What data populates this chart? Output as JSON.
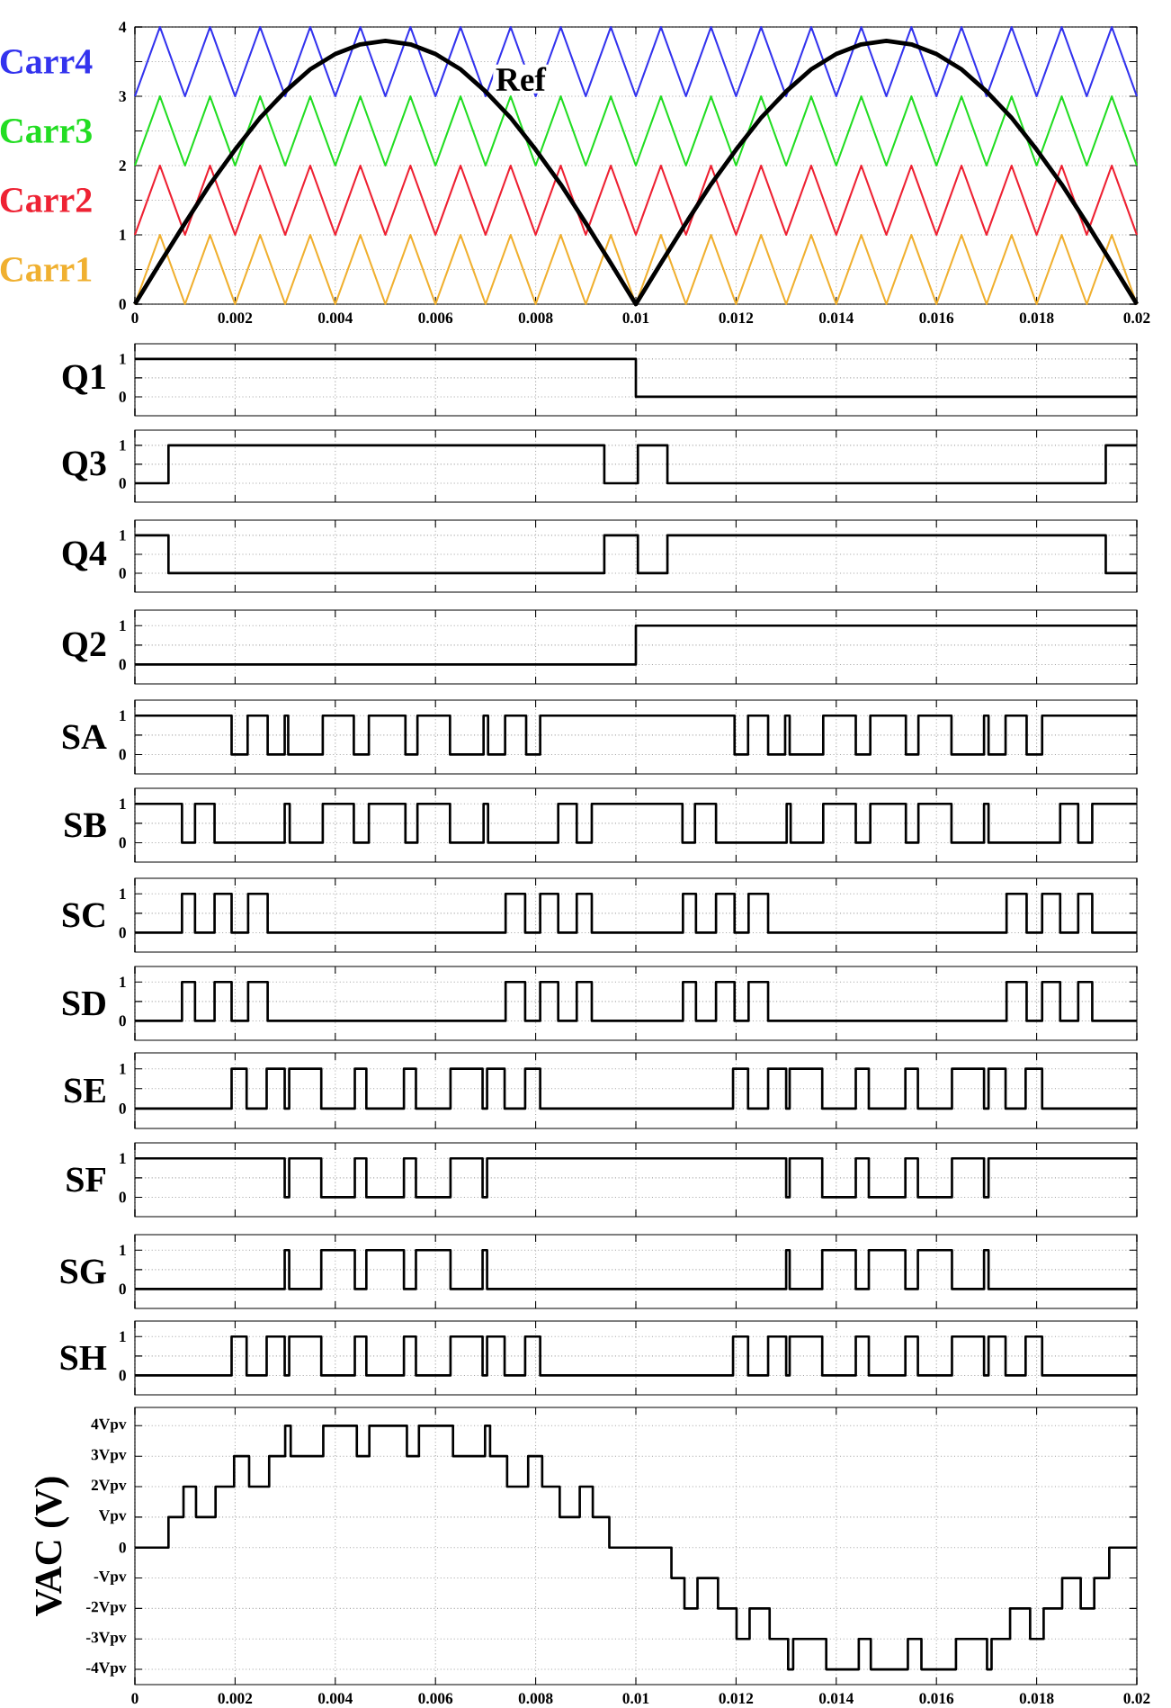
{
  "chart_data": [
    {
      "type": "line",
      "x": [
        0,
        0.0005,
        0.001,
        0.0015,
        0.002,
        0.0025,
        0.003,
        0.0035,
        0.004,
        0.0045,
        0.005,
        0.0055,
        0.006,
        0.0065,
        0.007,
        0.0075,
        0.008,
        0.0085,
        0.009,
        0.0095,
        0.01,
        0.0105,
        0.011,
        0.0115,
        0.012,
        0.0125,
        0.013,
        0.0135,
        0.014,
        0.0145,
        0.015,
        0.0155,
        0.016,
        0.0165,
        0.017,
        0.0175,
        0.018,
        0.0185,
        0.019,
        0.0195,
        0.02
      ],
      "series": [
        {
          "name": "Carr4",
          "color": "#3333ee",
          "values": [
            3,
            4,
            3,
            4,
            3,
            4,
            3,
            4,
            3,
            4,
            3,
            4,
            3,
            4,
            3,
            4,
            3,
            4,
            3,
            4,
            3,
            4,
            3,
            4,
            3,
            4,
            3,
            4,
            3,
            4,
            3,
            4,
            3,
            4,
            3,
            4,
            3,
            4,
            3,
            4,
            3
          ]
        },
        {
          "name": "Carr3",
          "color": "#22dd22",
          "values": [
            2,
            3,
            2,
            3,
            2,
            3,
            2,
            3,
            2,
            3,
            2,
            3,
            2,
            3,
            2,
            3,
            2,
            3,
            2,
            3,
            2,
            3,
            2,
            3,
            2,
            3,
            2,
            3,
            2,
            3,
            2,
            3,
            2,
            3,
            2,
            3,
            2,
            3,
            2,
            3,
            2
          ]
        },
        {
          "name": "Carr2",
          "color": "#ee2233",
          "values": [
            1,
            2,
            1,
            2,
            1,
            2,
            1,
            2,
            1,
            2,
            1,
            2,
            1,
            2,
            1,
            2,
            1,
            2,
            1,
            2,
            1,
            2,
            1,
            2,
            1,
            2,
            1,
            2,
            1,
            2,
            1,
            2,
            1,
            2,
            1,
            2,
            1,
            2,
            1,
            2,
            1
          ]
        },
        {
          "name": "Carr1",
          "color": "#f0b030",
          "values": [
            0,
            1,
            0,
            1,
            0,
            1,
            0,
            1,
            0,
            1,
            0,
            1,
            0,
            1,
            0,
            1,
            0,
            1,
            0,
            1,
            0,
            1,
            0,
            1,
            0,
            1,
            0,
            1,
            0,
            1,
            0,
            1,
            0,
            1,
            0,
            1,
            0,
            1,
            0,
            1,
            0
          ]
        },
        {
          "color": "#000000",
          "values": [
            0,
            0.59,
            1.17,
            1.73,
            2.23,
            2.69,
            3.07,
            3.39,
            3.61,
            3.75,
            3.8,
            3.75,
            3.61,
            3.39,
            3.07,
            2.69,
            2.23,
            1.73,
            1.17,
            0.59,
            0,
            0.59,
            1.17,
            1.73,
            2.23,
            2.69,
            3.07,
            3.39,
            3.61,
            3.75,
            3.8,
            3.75,
            3.61,
            3.39,
            3.07,
            2.69,
            2.23,
            1.73,
            1.17,
            0.59,
            0
          ]
        }
      ],
      "annotations": [
        {
          "text": "Ref",
          "x": 0.0077,
          "y": 3.25
        }
      ],
      "xlim": [
        0,
        0.02
      ],
      "ylim": [
        0,
        4
      ],
      "xticks": [
        0,
        0.002,
        0.004,
        0.006,
        0.008,
        0.01,
        0.012,
        0.014,
        0.016,
        0.018,
        0.02
      ],
      "yticks": [
        0,
        {
          "value": 0.5,
          "label": null
        },
        1,
        {
          "value": 1.5,
          "label": null
        },
        2,
        {
          "value": 2.5,
          "label": null
        },
        3,
        {
          "value": 3.5,
          "label": null
        },
        4
      ],
      "grid": true
    },
    {
      "type": "step",
      "ylabel": "Q1",
      "color": "#000000",
      "x": [
        0,
        0.01,
        0.02
      ],
      "values": [
        1,
        0,
        0
      ],
      "xlim": [
        0,
        0.02
      ],
      "ylim": [
        -0.5,
        1.4
      ],
      "xticks": [
        0,
        0.002,
        0.004,
        0.006,
        0.008,
        0.01,
        0.012,
        0.014,
        0.016,
        0.018,
        0.02
      ],
      "yticks": [
        0,
        {
          "value": 0.5,
          "label": null
        },
        1
      ],
      "grid": true,
      "tick_labels": "y"
    },
    {
      "type": "step",
      "ylabel": "Q3",
      "color": "#000000",
      "x": [
        0,
        0.00067,
        0.00937,
        0.01004,
        0.01063,
        0.01938,
        0.02
      ],
      "values": [
        0,
        1,
        0,
        1,
        0,
        1,
        1
      ],
      "xlim": [
        0,
        0.02
      ],
      "ylim": [
        -0.5,
        1.4
      ],
      "xticks": [
        0,
        0.002,
        0.004,
        0.006,
        0.008,
        0.01,
        0.012,
        0.014,
        0.016,
        0.018,
        0.02
      ],
      "yticks": [
        0,
        {
          "value": 0.5,
          "label": null
        },
        1
      ],
      "grid": true,
      "tick_labels": "y"
    },
    {
      "type": "step",
      "ylabel": "Q4",
      "color": "#000000",
      "x": [
        0,
        0.00067,
        0.00937,
        0.01004,
        0.01063,
        0.01938,
        0.02
      ],
      "values": [
        1,
        0,
        1,
        0,
        1,
        0,
        0
      ],
      "xlim": [
        0,
        0.02
      ],
      "ylim": [
        -0.5,
        1.4
      ],
      "xticks": [
        0,
        0.002,
        0.004,
        0.006,
        0.008,
        0.01,
        0.012,
        0.014,
        0.016,
        0.018,
        0.02
      ],
      "yticks": [
        0,
        {
          "value": 0.5,
          "label": null
        },
        1
      ],
      "grid": true,
      "tick_labels": "y"
    },
    {
      "type": "step",
      "ylabel": "Q2",
      "color": "#000000",
      "x": [
        0,
        0.01,
        0.02
      ],
      "values": [
        0,
        1,
        1
      ],
      "xlim": [
        0,
        0.02
      ],
      "ylim": [
        -0.5,
        1.4
      ],
      "xticks": [
        0,
        0.002,
        0.004,
        0.006,
        0.008,
        0.01,
        0.012,
        0.014,
        0.016,
        0.018,
        0.02
      ],
      "yticks": [
        0,
        {
          "value": 0.5,
          "label": null
        },
        1
      ],
      "grid": true,
      "tick_labels": "y"
    },
    {
      "type": "step",
      "ylabel": "SA",
      "color": "#000000",
      "x": [
        0,
        0.00193,
        0.00225,
        0.00265,
        0.00299,
        0.00306,
        0.00375,
        0.00437,
        0.00467,
        0.0054,
        0.00564,
        0.00629,
        0.00696,
        0.00705,
        0.00739,
        0.00781,
        0.00809,
        0.01197,
        0.01224,
        0.01264,
        0.01298,
        0.01307,
        0.01374,
        0.01439,
        0.01468,
        0.01539,
        0.01564,
        0.0163,
        0.01695,
        0.01704,
        0.01738,
        0.0178,
        0.01811,
        0.02
      ],
      "values": [
        1,
        0,
        1,
        0,
        1,
        0,
        1,
        0,
        1,
        0,
        1,
        0,
        1,
        0,
        1,
        0,
        1,
        0,
        1,
        0,
        1,
        0,
        1,
        0,
        1,
        0,
        1,
        0,
        1,
        0,
        1,
        0,
        1,
        1
      ],
      "xlim": [
        0,
        0.02
      ],
      "ylim": [
        -0.5,
        1.4
      ],
      "xticks": [
        0,
        0.002,
        0.004,
        0.006,
        0.008,
        0.01,
        0.012,
        0.014,
        0.016,
        0.018,
        0.02
      ],
      "yticks": [
        0,
        {
          "value": 0.5,
          "label": null
        },
        1
      ],
      "grid": true,
      "tick_labels": "y"
    },
    {
      "type": "step",
      "ylabel": "SB",
      "color": "#000000",
      "x": [
        0,
        0.00094,
        0.0012,
        0.00159,
        0.00299,
        0.00309,
        0.00375,
        0.00437,
        0.00467,
        0.0054,
        0.00564,
        0.00629,
        0.00696,
        0.00705,
        0.00845,
        0.00882,
        0.00912,
        0.01093,
        0.01118,
        0.0116,
        0.01301,
        0.01309,
        0.01374,
        0.01439,
        0.01468,
        0.01539,
        0.01564,
        0.0163,
        0.01695,
        0.01704,
        0.01847,
        0.01883,
        0.01911,
        0.02
      ],
      "values": [
        1,
        0,
        1,
        0,
        1,
        0,
        1,
        0,
        1,
        0,
        1,
        0,
        1,
        0,
        1,
        0,
        1,
        0,
        1,
        0,
        1,
        0,
        1,
        0,
        1,
        0,
        1,
        0,
        1,
        0,
        1,
        0,
        1,
        1
      ],
      "xlim": [
        0,
        0.02
      ],
      "ylim": [
        -0.5,
        1.4
      ],
      "xticks": [
        0,
        0.002,
        0.004,
        0.006,
        0.008,
        0.01,
        0.012,
        0.014,
        0.016,
        0.018,
        0.02
      ],
      "yticks": [
        0,
        {
          "value": 0.5,
          "label": null
        },
        1
      ],
      "grid": true,
      "tick_labels": "y"
    },
    {
      "type": "step",
      "ylabel": "SC",
      "color": "#000000",
      "x": [
        0,
        0.00094,
        0.0012,
        0.00159,
        0.00193,
        0.00226,
        0.00265,
        0.0074,
        0.00779,
        0.00809,
        0.00845,
        0.00882,
        0.00912,
        0.01094,
        0.0112,
        0.0116,
        0.01197,
        0.01225,
        0.01264,
        0.0174,
        0.0178,
        0.01811,
        0.01847,
        0.01883,
        0.01911,
        0.02
      ],
      "values": [
        0,
        1,
        0,
        1,
        0,
        1,
        0,
        1,
        0,
        1,
        0,
        1,
        0,
        1,
        0,
        1,
        0,
        1,
        0,
        1,
        0,
        1,
        0,
        1,
        0,
        0
      ],
      "xlim": [
        0,
        0.02
      ],
      "ylim": [
        -0.5,
        1.4
      ],
      "xticks": [
        0,
        0.002,
        0.004,
        0.006,
        0.008,
        0.01,
        0.012,
        0.014,
        0.016,
        0.018,
        0.02
      ],
      "yticks": [
        0,
        {
          "value": 0.5,
          "label": null
        },
        1
      ],
      "grid": true,
      "tick_labels": "y"
    },
    {
      "type": "step",
      "ylabel": "SD",
      "color": "#000000",
      "x": [
        0,
        0.00094,
        0.0012,
        0.00159,
        0.00193,
        0.00226,
        0.00265,
        0.0074,
        0.00779,
        0.00809,
        0.00845,
        0.00882,
        0.00912,
        0.01094,
        0.0112,
        0.0116,
        0.01197,
        0.01225,
        0.01264,
        0.0174,
        0.0178,
        0.01811,
        0.01847,
        0.01883,
        0.01911,
        0.02
      ],
      "values": [
        0,
        1,
        0,
        1,
        0,
        1,
        0,
        1,
        0,
        1,
        0,
        1,
        0,
        1,
        0,
        1,
        0,
        1,
        0,
        1,
        0,
        1,
        0,
        1,
        0,
        0
      ],
      "xlim": [
        0,
        0.02
      ],
      "ylim": [
        -0.5,
        1.4
      ],
      "xticks": [
        0,
        0.002,
        0.004,
        0.006,
        0.008,
        0.01,
        0.012,
        0.014,
        0.016,
        0.018,
        0.02
      ],
      "yticks": [
        0,
        {
          "value": 0.5,
          "label": null
        },
        1
      ],
      "grid": true,
      "tick_labels": "y"
    },
    {
      "type": "step",
      "ylabel": "SE",
      "color": "#000000",
      "x": [
        0,
        0.00193,
        0.00223,
        0.00263,
        0.00299,
        0.00308,
        0.00372,
        0.00439,
        0.00462,
        0.00537,
        0.00561,
        0.0063,
        0.00694,
        0.00703,
        0.00738,
        0.00779,
        0.00809,
        0.01194,
        0.01224,
        0.01264,
        0.013,
        0.01307,
        0.01372,
        0.01439,
        0.01465,
        0.01538,
        0.01563,
        0.01631,
        0.01695,
        0.01704,
        0.01738,
        0.01778,
        0.01811,
        0.02
      ],
      "values": [
        0,
        1,
        0,
        1,
        0,
        1,
        0,
        1,
        0,
        1,
        0,
        1,
        0,
        1,
        0,
        1,
        0,
        1,
        0,
        1,
        0,
        1,
        0,
        1,
        0,
        1,
        0,
        1,
        0,
        1,
        0,
        1,
        0,
        0
      ],
      "xlim": [
        0,
        0.02
      ],
      "ylim": [
        -0.5,
        1.4
      ],
      "xticks": [
        0,
        0.002,
        0.004,
        0.006,
        0.008,
        0.01,
        0.012,
        0.014,
        0.016,
        0.018,
        0.02
      ],
      "yticks": [
        0,
        {
          "value": 0.5,
          "label": null
        },
        1
      ],
      "grid": true,
      "tick_labels": "y"
    },
    {
      "type": "step",
      "ylabel": "SF",
      "color": "#000000",
      "x": [
        0,
        0.00299,
        0.00308,
        0.00372,
        0.00439,
        0.00462,
        0.00537,
        0.00561,
        0.0063,
        0.00694,
        0.00703,
        0.013,
        0.01307,
        0.01372,
        0.01439,
        0.01465,
        0.01538,
        0.01563,
        0.01631,
        0.01695,
        0.01704,
        0.02
      ],
      "values": [
        1,
        0,
        1,
        0,
        1,
        0,
        1,
        0,
        1,
        0,
        1,
        0,
        1,
        0,
        1,
        0,
        1,
        0,
        1,
        0,
        1,
        1
      ],
      "xlim": [
        0,
        0.02
      ],
      "ylim": [
        -0.5,
        1.4
      ],
      "xticks": [
        0,
        0.002,
        0.004,
        0.006,
        0.008,
        0.01,
        0.012,
        0.014,
        0.016,
        0.018,
        0.02
      ],
      "yticks": [
        0,
        {
          "value": 0.5,
          "label": null
        },
        1
      ],
      "grid": true,
      "tick_labels": "y"
    },
    {
      "type": "step",
      "ylabel": "SG",
      "color": "#000000",
      "x": [
        0,
        0.00299,
        0.00308,
        0.00372,
        0.00439,
        0.00462,
        0.00537,
        0.00561,
        0.0063,
        0.00694,
        0.00703,
        0.013,
        0.01307,
        0.01372,
        0.01439,
        0.01465,
        0.01538,
        0.01563,
        0.01631,
        0.01695,
        0.01704,
        0.02
      ],
      "values": [
        0,
        1,
        0,
        1,
        0,
        1,
        0,
        1,
        0,
        1,
        0,
        1,
        0,
        1,
        0,
        1,
        0,
        1,
        0,
        1,
        0,
        0
      ],
      "xlim": [
        0,
        0.02
      ],
      "ylim": [
        -0.5,
        1.4
      ],
      "xticks": [
        0,
        0.002,
        0.004,
        0.006,
        0.008,
        0.01,
        0.012,
        0.014,
        0.016,
        0.018,
        0.02
      ],
      "yticks": [
        0,
        {
          "value": 0.5,
          "label": null
        },
        1
      ],
      "grid": true,
      "tick_labels": "y"
    },
    {
      "type": "step",
      "ylabel": "SH",
      "color": "#000000",
      "x": [
        0,
        0.00193,
        0.00223,
        0.00263,
        0.00299,
        0.00308,
        0.00372,
        0.00439,
        0.00462,
        0.00537,
        0.00561,
        0.0063,
        0.00694,
        0.00703,
        0.00738,
        0.00779,
        0.00809,
        0.01194,
        0.01224,
        0.01264,
        0.013,
        0.01307,
        0.01372,
        0.01439,
        0.01465,
        0.01538,
        0.01563,
        0.01631,
        0.01695,
        0.01704,
        0.01738,
        0.01778,
        0.01811,
        0.02
      ],
      "values": [
        0,
        1,
        0,
        1,
        0,
        1,
        0,
        1,
        0,
        1,
        0,
        1,
        0,
        1,
        0,
        1,
        0,
        1,
        0,
        1,
        0,
        1,
        0,
        1,
        0,
        1,
        0,
        1,
        0,
        1,
        0,
        1,
        0,
        0
      ],
      "xlim": [
        0,
        0.02
      ],
      "ylim": [
        -0.5,
        1.4
      ],
      "xticks": [
        0,
        0.002,
        0.004,
        0.006,
        0.008,
        0.01,
        0.012,
        0.014,
        0.016,
        0.018,
        0.02
      ],
      "yticks": [
        0,
        {
          "value": 0.5,
          "label": null
        },
        1
      ],
      "grid": true,
      "tick_labels": "y"
    },
    {
      "type": "step",
      "ylabel": "VAC (V)",
      "color": "#000000",
      "x": [
        0,
        0.00067,
        0.00097,
        0.00122,
        0.00161,
        0.00198,
        0.00228,
        0.00268,
        0.003,
        0.00311,
        0.00376,
        0.00443,
        0.00468,
        0.00543,
        0.00567,
        0.00635,
        0.00699,
        0.00709,
        0.00743,
        0.00785,
        0.00813,
        0.00848,
        0.00888,
        0.00914,
        0.00947,
        0.01071,
        0.01097,
        0.01123,
        0.01164,
        0.01201,
        0.01227,
        0.01267,
        0.01304,
        0.01314,
        0.0138,
        0.01445,
        0.01469,
        0.01543,
        0.0157,
        0.01639,
        0.01701,
        0.0171,
        0.01747,
        0.01787,
        0.01814,
        0.01851,
        0.01888,
        0.01915,
        0.01945,
        0.02
      ],
      "values": [
        0,
        1,
        2,
        1,
        2,
        3,
        2,
        3,
        4,
        3,
        4,
        3,
        4,
        3,
        4,
        3,
        4,
        3,
        2,
        3,
        2,
        1,
        2,
        1,
        0,
        -1,
        -2,
        -1,
        -2,
        -3,
        -2,
        -3,
        -4,
        -3,
        -4,
        -3,
        -4,
        -3,
        -4,
        -3,
        -4,
        -3,
        -2,
        -3,
        -2,
        -1,
        -2,
        -1,
        0,
        0
      ],
      "xlim": [
        0,
        0.02
      ],
      "ylim": [
        -4.5,
        4.6
      ],
      "xticks": [
        0,
        0.002,
        0.004,
        0.006,
        0.008,
        0.01,
        0.012,
        0.014,
        0.016,
        0.018,
        0.02
      ],
      "yticks": [
        {
          "value": -4,
          "label": "-4Vpv"
        },
        {
          "value": -3,
          "label": "-3Vpv"
        },
        {
          "value": -2,
          "label": "-2Vpv"
        },
        {
          "value": -1,
          "label": "-Vpv"
        },
        0,
        {
          "value": 1,
          "label": "Vpv"
        },
        {
          "value": 2,
          "label": "2Vpv"
        },
        {
          "value": 3,
          "label": "3Vpv"
        },
        {
          "value": 4,
          "label": "4Vpv"
        }
      ],
      "grid": true
    }
  ]
}
